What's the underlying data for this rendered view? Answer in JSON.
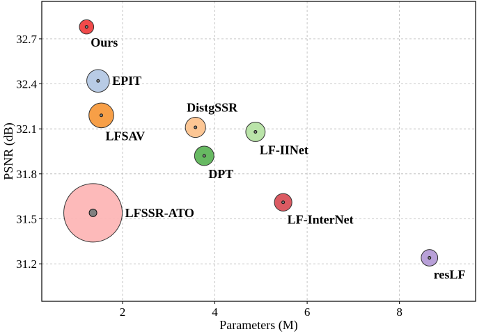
{
  "chart_data": {
    "type": "scatter",
    "title": "",
    "xlabel": "Parameters (M)",
    "ylabel": "PSNR (dB)",
    "xlim": [
      0.25,
      9.65
    ],
    "ylim": [
      30.95,
      32.95
    ],
    "xticks": [
      2,
      4,
      6,
      8
    ],
    "yticks": [
      31.2,
      31.5,
      31.8,
      32.1,
      32.4,
      32.7
    ],
    "ytick_labels": [
      "31.2",
      "31.5",
      "31.8",
      "32.1",
      "32.4",
      "32.7"
    ],
    "grid": true,
    "points": [
      {
        "name": "Ours",
        "x": 1.22,
        "y": 32.78,
        "flops_size": 0.06,
        "color": "#f04040",
        "label": "Ours",
        "label_pos": "below-right"
      },
      {
        "name": "EPIT",
        "x": 1.47,
        "y": 32.42,
        "flops_size": 0.15,
        "color": "#b4c8e4",
        "label": "EPIT",
        "label_pos": "right"
      },
      {
        "name": "LFSAV",
        "x": 1.54,
        "y": 32.19,
        "flops_size": 0.18,
        "color": "#f79a3d",
        "label": "LFSAV",
        "label_pos": "below-right"
      },
      {
        "name": "DistgSSR",
        "x": 3.58,
        "y": 32.11,
        "flops_size": 0.12,
        "color": "#fcc38e",
        "label": "DistgSSR",
        "label_pos": "above-right"
      },
      {
        "name": "LF-IINet",
        "x": 4.88,
        "y": 32.08,
        "flops_size": 0.11,
        "color": "#b6e3a4",
        "label": "LF-IINet",
        "label_pos": "below-right"
      },
      {
        "name": "DPT",
        "x": 3.77,
        "y": 31.92,
        "flops_size": 0.11,
        "color": "#5fb55a",
        "label": "DPT",
        "label_pos": "below-right"
      },
      {
        "name": "LF-InterNet",
        "x": 5.48,
        "y": 31.61,
        "flops_size": 0.09,
        "color": "#d9515a",
        "label": "LF-InterNet",
        "label_pos": "below-right"
      },
      {
        "name": "LFSSR-ATO",
        "x": 1.36,
        "y": 31.54,
        "flops_size": 1.0,
        "color": "#fdb6b6",
        "label": "LFSSR-ATO",
        "label_pos": "right"
      },
      {
        "name": "resLF",
        "x": 8.65,
        "y": 31.24,
        "flops_size": 0.08,
        "color": "#b49bd6",
        "label": "resLF",
        "label_pos": "below-right"
      }
    ]
  }
}
